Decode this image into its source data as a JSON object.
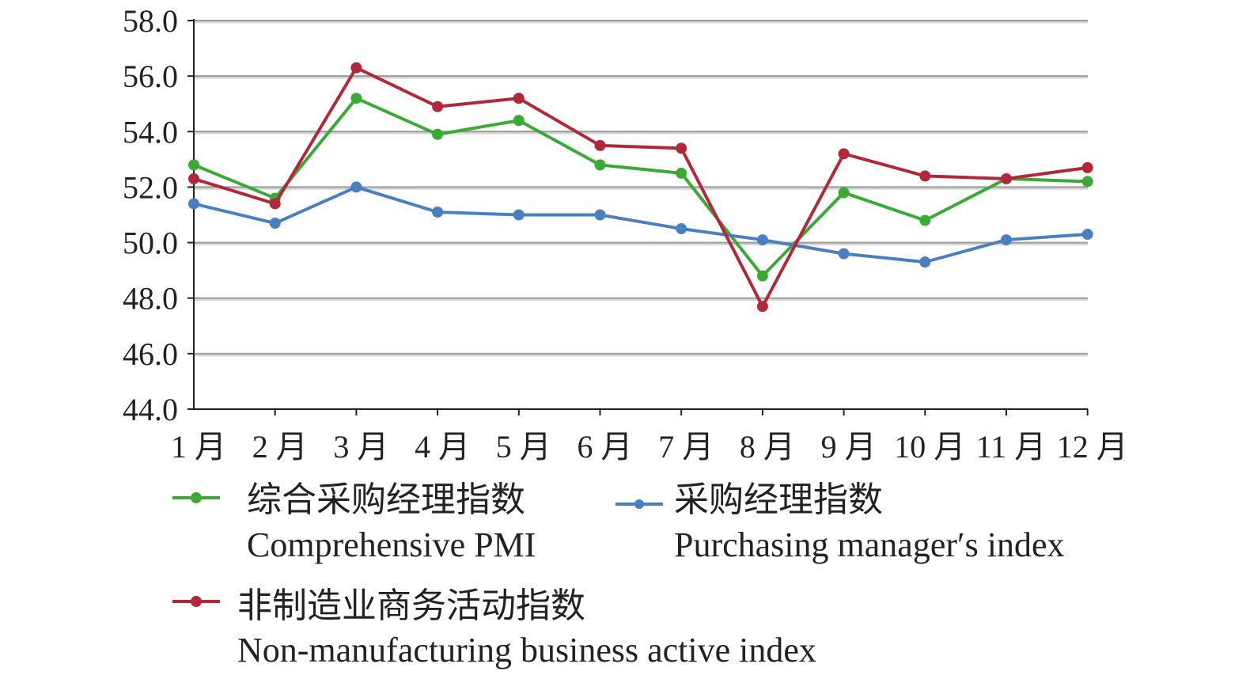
{
  "chart_data": {
    "type": "line",
    "title": "",
    "xlabel": "",
    "ylabel": "",
    "categories": [
      "1 月",
      "2 月",
      "3 月",
      "4 月",
      "5 月",
      "6 月",
      "7 月",
      "8 月",
      "9 月",
      "10 月",
      "11 月",
      "12 月"
    ],
    "ylim": [
      44.0,
      58.0
    ],
    "yticks": [
      "44.0",
      "46.0",
      "48.0",
      "50.0",
      "52.0",
      "54.0",
      "56.0",
      "58.0"
    ],
    "grid": true,
    "legend_position": "bottom",
    "series": [
      {
        "name_zh": "综合采购经理指数",
        "name_en": "Comprehensive PMI",
        "color": "#3aaa35",
        "values": [
          52.8,
          51.6,
          55.2,
          53.9,
          54.4,
          52.8,
          52.5,
          48.8,
          51.8,
          50.8,
          52.3,
          52.2
        ]
      },
      {
        "name_zh": "采购经理指数",
        "name_en": "Purchasing manager′s index",
        "color": "#4a7ec2",
        "values": [
          51.4,
          50.7,
          52.0,
          51.1,
          51.0,
          51.0,
          50.5,
          50.1,
          49.6,
          49.3,
          50.1,
          50.3
        ]
      },
      {
        "name_zh": "非制造业商务活动指数",
        "name_en": "Non-manufacturing business active index",
        "color": "#b0283a",
        "values": [
          52.3,
          51.4,
          56.3,
          54.9,
          55.2,
          53.5,
          53.4,
          47.7,
          53.2,
          52.4,
          52.3,
          52.7
        ]
      }
    ]
  }
}
